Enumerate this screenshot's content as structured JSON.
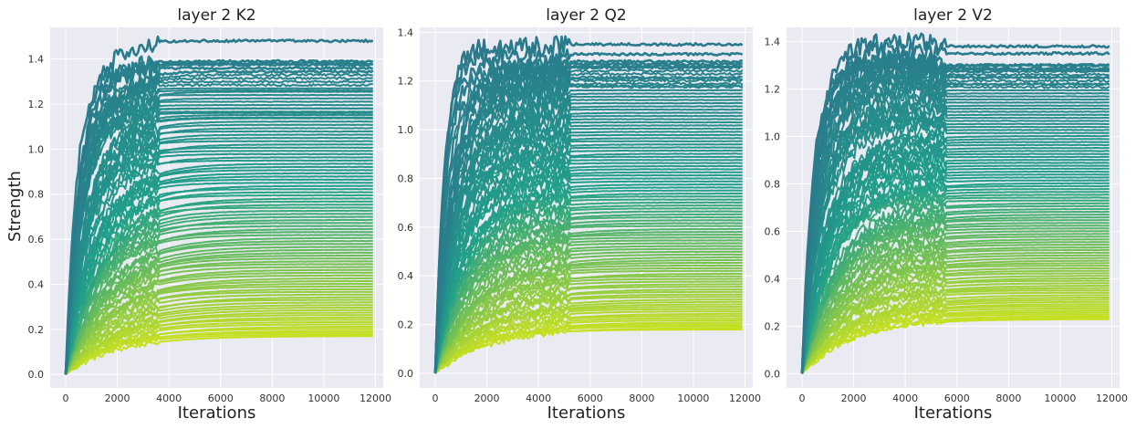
{
  "figure": {
    "ylabel": "Strength",
    "xlabel": "Iterations",
    "colors": {
      "background": "#eaeaf2",
      "grid": "#ffffff",
      "line_high": "#2a7a8c",
      "line_mid": "#21a08a",
      "line_low": "#c7e020"
    }
  },
  "chart_data": [
    {
      "type": "line",
      "title": "layer 2 K2",
      "xlabel": "Iterations",
      "ylabel": "Strength",
      "xlim": [
        -600,
        12300
      ],
      "ylim": [
        -0.06,
        1.54
      ],
      "xticks": [
        0,
        2000,
        4000,
        6000,
        8000,
        10000,
        12000
      ],
      "yticks": [
        0.0,
        0.2,
        0.4,
        0.6,
        0.8,
        1.0,
        1.2,
        1.4
      ],
      "grid": true,
      "series_count": 100,
      "x_range": [
        0,
        11900
      ],
      "final_value_range": [
        0.17,
        1.48
      ],
      "top_final_values": [
        1.48,
        1.38,
        1.26,
        1.18,
        1.16,
        1.14
      ],
      "overshoot_peak": {
        "x": 2300,
        "y": 1.47
      },
      "settle_iteration": 3600,
      "convergence": "curves rise steeply from 0 and plateau after about 4000 iterations"
    },
    {
      "type": "line",
      "title": "layer 2 Q2",
      "xlabel": "Iterations",
      "ylabel": "",
      "xlim": [
        -600,
        12300
      ],
      "ylim": [
        -0.06,
        1.42
      ],
      "xticks": [
        0,
        2000,
        4000,
        6000,
        8000,
        10000,
        12000
      ],
      "yticks": [
        0.0,
        0.2,
        0.4,
        0.6,
        0.8,
        1.0,
        1.2,
        1.4
      ],
      "grid": true,
      "series_count": 100,
      "x_range": [
        0,
        11900
      ],
      "final_value_range": [
        0.18,
        1.35
      ],
      "top_final_values": [
        1.35,
        1.31,
        1.28,
        1.26,
        1.21,
        1.18
      ],
      "overshoot_peak": {
        "x": 3500,
        "y": 1.34
      },
      "settle_iteration": 5200,
      "convergence": "curves rise steeply from 0 and plateau after about 5000 iterations"
    },
    {
      "type": "line",
      "title": "layer 2 V2",
      "xlabel": "Iterations",
      "ylabel": "",
      "xlim": [
        -600,
        12300
      ],
      "ylim": [
        -0.06,
        1.46
      ],
      "xticks": [
        0,
        2000,
        4000,
        6000,
        8000,
        10000,
        12000
      ],
      "yticks": [
        0.0,
        0.2,
        0.4,
        0.6,
        0.8,
        1.0,
        1.2,
        1.4
      ],
      "grid": true,
      "series_count": 100,
      "x_range": [
        0,
        11900
      ],
      "final_value_range": [
        0.23,
        1.38
      ],
      "top_final_values": [
        1.38,
        1.35,
        1.3,
        1.28,
        1.25,
        1.22
      ],
      "overshoot_peak": {
        "x": 3500,
        "y": 1.4
      },
      "settle_iteration": 5600,
      "convergence": "curves rise steeply from 0 and plateau after about 5500 iterations"
    }
  ]
}
